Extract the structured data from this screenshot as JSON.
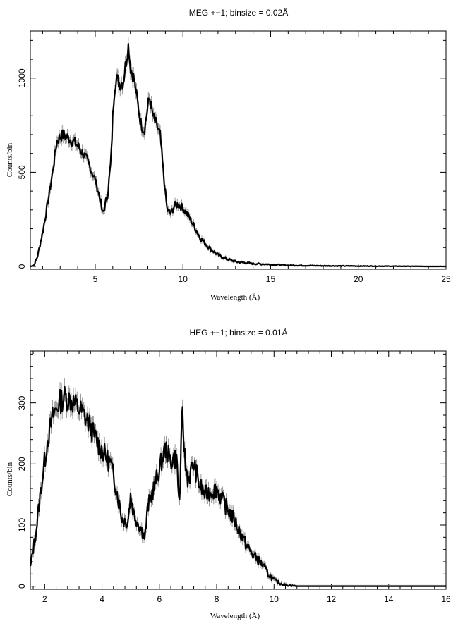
{
  "chart_data": [
    {
      "type": "line",
      "title": "MEG +−1; binsize = 0.02Å",
      "xlabel": "Wavelength (Å)",
      "ylabel": "Counts/bin",
      "xlim": [
        1.3,
        25
      ],
      "ylim": [
        -15,
        1250
      ],
      "xticks": [
        "5",
        "10",
        "15",
        "20",
        "25"
      ],
      "yticks": [
        "0",
        "500",
        "1000"
      ],
      "series": [
        {
          "x": [
            1.3,
            1.5,
            1.7,
            2.0,
            2.3,
            2.6,
            2.8,
            3.0,
            3.2,
            3.5,
            3.8,
            4.0,
            4.3,
            4.6,
            5.0,
            5.3,
            5.4,
            5.5,
            5.7,
            5.9,
            6.0,
            6.1,
            6.2,
            6.4,
            6.6,
            6.8,
            6.9,
            7.0,
            7.2,
            7.4,
            7.6,
            7.8,
            8.0,
            8.1,
            8.3,
            8.5,
            8.7,
            8.9,
            9.1,
            9.3,
            9.5,
            9.7,
            10.0,
            10.3,
            10.6,
            11.0,
            11.5,
            12.0,
            12.5,
            13.0,
            14.0,
            15.0,
            16.0,
            18.0,
            20.0,
            22.0,
            25.0
          ],
          "y": [
            0,
            5,
            50,
            180,
            340,
            520,
            660,
            690,
            700,
            680,
            660,
            640,
            600,
            550,
            460,
            350,
            280,
            300,
            380,
            560,
            800,
            950,
            1000,
            970,
            980,
            1120,
            1180,
            1060,
            1000,
            880,
            760,
            720,
            850,
            900,
            790,
            750,
            700,
            480,
            300,
            280,
            320,
            330,
            310,
            270,
            220,
            150,
            100,
            60,
            40,
            25,
            15,
            10,
            6,
            3,
            2,
            1,
            0
          ],
          "band": 30
        }
      ]
    },
    {
      "type": "line",
      "title": "HEG +−1; binsize = 0.01Å",
      "xlabel": "Wavelength (Å)",
      "ylabel": "Counts/bin",
      "xlim": [
        1.5,
        16
      ],
      "ylim": [
        -5,
        385
      ],
      "xticks": [
        "2",
        "4",
        "6",
        "8",
        "10",
        "12",
        "14",
        "16"
      ],
      "yticks": [
        "0",
        "100",
        "200",
        "300"
      ],
      "series": [
        {
          "x": [
            1.5,
            1.7,
            1.9,
            2.1,
            2.3,
            2.5,
            2.7,
            2.9,
            3.1,
            3.3,
            3.5,
            3.7,
            3.9,
            4.1,
            4.3,
            4.5,
            4.7,
            4.9,
            5.0,
            5.1,
            5.3,
            5.5,
            5.6,
            5.8,
            6.0,
            6.2,
            6.4,
            6.6,
            6.7,
            6.8,
            6.9,
            7.0,
            7.2,
            7.4,
            7.6,
            7.8,
            8.0,
            8.2,
            8.4,
            8.6,
            8.8,
            9.0,
            9.2,
            9.4,
            9.6,
            9.8,
            10.0,
            10.2,
            10.4,
            10.6,
            10.8,
            11.0,
            12.0,
            13.0,
            14.0,
            15.0,
            16.0
          ],
          "y": [
            30,
            90,
            170,
            240,
            280,
            300,
            310,
            305,
            295,
            285,
            270,
            250,
            230,
            215,
            200,
            160,
            110,
            105,
            150,
            120,
            100,
            80,
            130,
            160,
            190,
            225,
            205,
            210,
            130,
            285,
            200,
            175,
            200,
            165,
            150,
            155,
            160,
            140,
            125,
            110,
            90,
            70,
            55,
            45,
            35,
            20,
            10,
            5,
            2,
            1,
            0,
            0,
            0,
            0,
            0,
            0,
            0
          ],
          "band": 18
        }
      ]
    }
  ]
}
